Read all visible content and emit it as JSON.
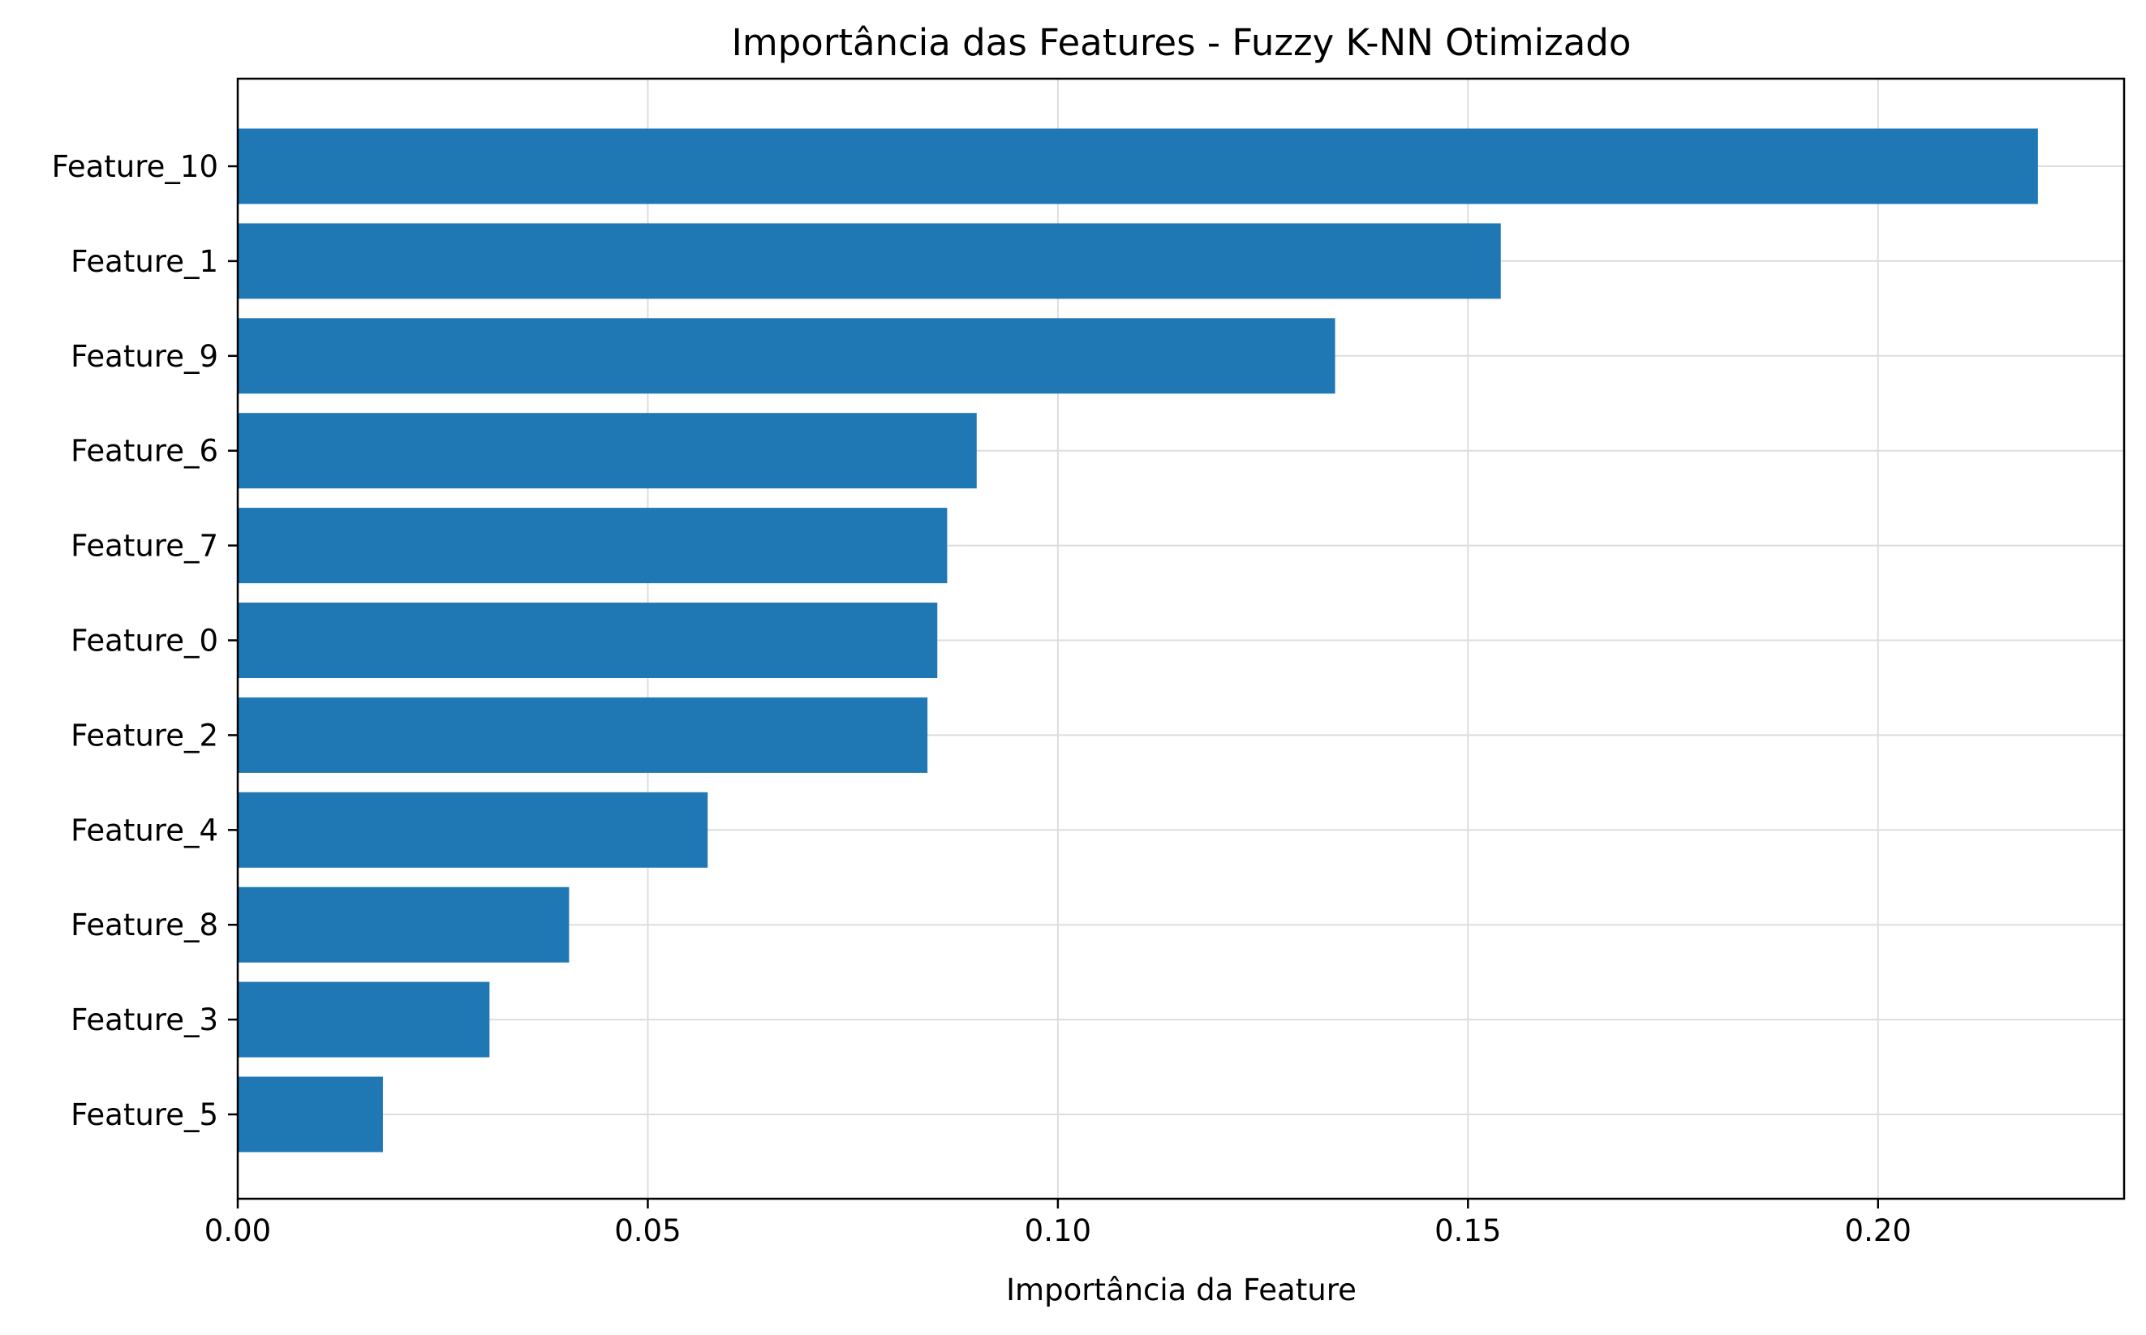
{
  "chart_data": {
    "type": "bar",
    "orientation": "horizontal",
    "title": "Importância das Features - Fuzzy K-NN Otimizado",
    "xlabel": "Importância da Feature",
    "ylabel": "",
    "categories": [
      "Feature_10",
      "Feature_1",
      "Feature_9",
      "Feature_6",
      "Feature_7",
      "Feature_0",
      "Feature_2",
      "Feature_4",
      "Feature_8",
      "Feature_3",
      "Feature_5"
    ],
    "values": [
      0.2195,
      0.154,
      0.1338,
      0.0901,
      0.0865,
      0.0853,
      0.0841,
      0.0573,
      0.0404,
      0.0307,
      0.0177
    ],
    "xlim": [
      0,
      0.23
    ],
    "xticks": [
      0.0,
      0.05,
      0.1,
      0.15,
      0.2
    ],
    "xtick_labels": [
      "0.00",
      "0.05",
      "0.10",
      "0.15",
      "0.20"
    ],
    "grid": true,
    "bar_color": "#1f77b4",
    "grid_color": "#dddddd",
    "axis_color": "#000000"
  }
}
